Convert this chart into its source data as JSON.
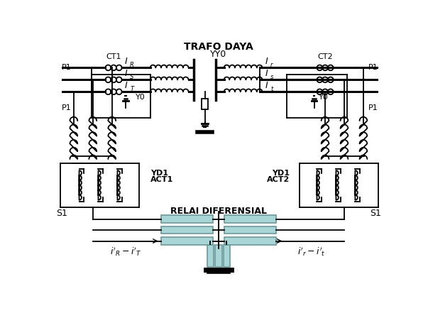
{
  "bg_color": "#ffffff",
  "line_color": "#000000",
  "relay_fill": "#a8d5d5",
  "relay_edge": "#6a9a9a",
  "figsize": [
    6.03,
    4.55
  ],
  "dpi": 100,
  "title1": "TRAFO DAYA",
  "title2": "YY0",
  "ct1_label": "CT1",
  "ct2_label": "CT2",
  "y0_label": "Y0",
  "yd1_act1": "YD1\nACT1",
  "yd1_act2": "YD1\nACT2",
  "relai_label": "RELAI DIFERENSIAL",
  "s1_label": "S1",
  "p1_label": "P1",
  "label_left": "$i'_R - i'_T$",
  "label_right": "$i'_r - i'_t$"
}
